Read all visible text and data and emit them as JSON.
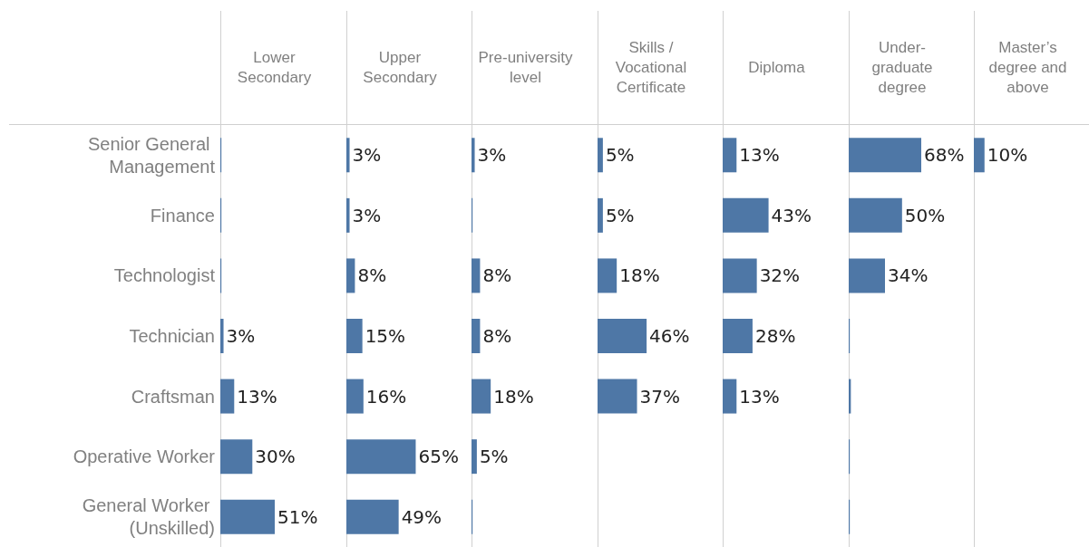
{
  "chart_data": [
    {
      "type": "bar",
      "orientation": "horizontal",
      "title": "Lower Secondary",
      "categories": [
        "Senior General Management",
        "Finance",
        "Technologist",
        "Technician",
        "Craftsman",
        "Operative Worker",
        "General Worker (Unskilled)"
      ],
      "values": [
        1,
        1,
        1,
        3,
        13,
        30,
        51
      ],
      "value_labels": [
        null,
        null,
        null,
        "3%",
        "13%",
        "30%",
        "51%"
      ],
      "color": "#4e77a6",
      "tick_labels": "y"
    },
    {
      "type": "bar",
      "orientation": "horizontal",
      "title": "Upper Secondary",
      "categories": [
        "Senior General Management",
        "Finance",
        "Technologist",
        "Technician",
        "Craftsman",
        "Operative Worker",
        "General Worker (Unskilled)"
      ],
      "values": [
        3,
        3,
        8,
        15,
        16,
        65,
        49
      ],
      "value_labels": [
        "3%",
        "3%",
        "8%",
        "15%",
        "16%",
        "65%",
        "49%"
      ],
      "color": "#4e77a6",
      "tick_labels": false
    },
    {
      "type": "bar",
      "orientation": "horizontal",
      "title": "Pre-university level",
      "categories": [
        "Senior General Management",
        "Finance",
        "Technologist",
        "Technician",
        "Craftsman",
        "Operative Worker",
        "General Worker (Unskilled)"
      ],
      "values": [
        3,
        1,
        8,
        8,
        18,
        5,
        1
      ],
      "value_labels": [
        "3%",
        null,
        "8%",
        "8%",
        "18%",
        "5%",
        null
      ],
      "color": "#4e77a6",
      "tick_labels": false
    },
    {
      "type": "bar",
      "orientation": "horizontal",
      "title": "Skills / Vocational Certificate",
      "categories": [
        "Senior General Management",
        "Finance",
        "Technologist",
        "Technician",
        "Craftsman",
        "Operative Worker",
        "General Worker (Unskilled)"
      ],
      "values": [
        5,
        5,
        18,
        46,
        37,
        null,
        null
      ],
      "value_labels": [
        "5%",
        "5%",
        "18%",
        "46%",
        "37%",
        null,
        null
      ],
      "color": "#4e77a6",
      "tick_labels": false
    },
    {
      "type": "bar",
      "orientation": "horizontal",
      "title": "Diploma",
      "categories": [
        "Senior General Management",
        "Finance",
        "Technologist",
        "Technician",
        "Craftsman",
        "Operative Worker",
        "General Worker (Unskilled)"
      ],
      "values": [
        13,
        43,
        32,
        28,
        13,
        null,
        null
      ],
      "value_labels": [
        "13%",
        "43%",
        "32%",
        "28%",
        "13%",
        null,
        null
      ],
      "color": "#4e77a6",
      "tick_labels": false
    },
    {
      "type": "bar",
      "orientation": "horizontal",
      "title": "Under-graduate degree",
      "categories": [
        "Senior General Management",
        "Finance",
        "Technologist",
        "Technician",
        "Craftsman",
        "Operative Worker",
        "General Worker (Unskilled)"
      ],
      "values": [
        68,
        50,
        34,
        1,
        2,
        1,
        1
      ],
      "value_labels": [
        "68%",
        "50%",
        "34%",
        null,
        null,
        null,
        null
      ],
      "color": "#4e77a6",
      "tick_labels": false
    },
    {
      "type": "bar",
      "orientation": "horizontal",
      "title": "Master’s degree and above",
      "categories": [
        "Senior General Management",
        "Finance",
        "Technologist",
        "Technician",
        "Craftsman",
        "Operative Worker",
        "General Worker (Unskilled)"
      ],
      "values": [
        10,
        null,
        null,
        null,
        null,
        null,
        null
      ],
      "value_labels": [
        "10%",
        null,
        null,
        null,
        null,
        null,
        null
      ],
      "color": "#4e77a6",
      "tick_labels": false
    }
  ]
}
